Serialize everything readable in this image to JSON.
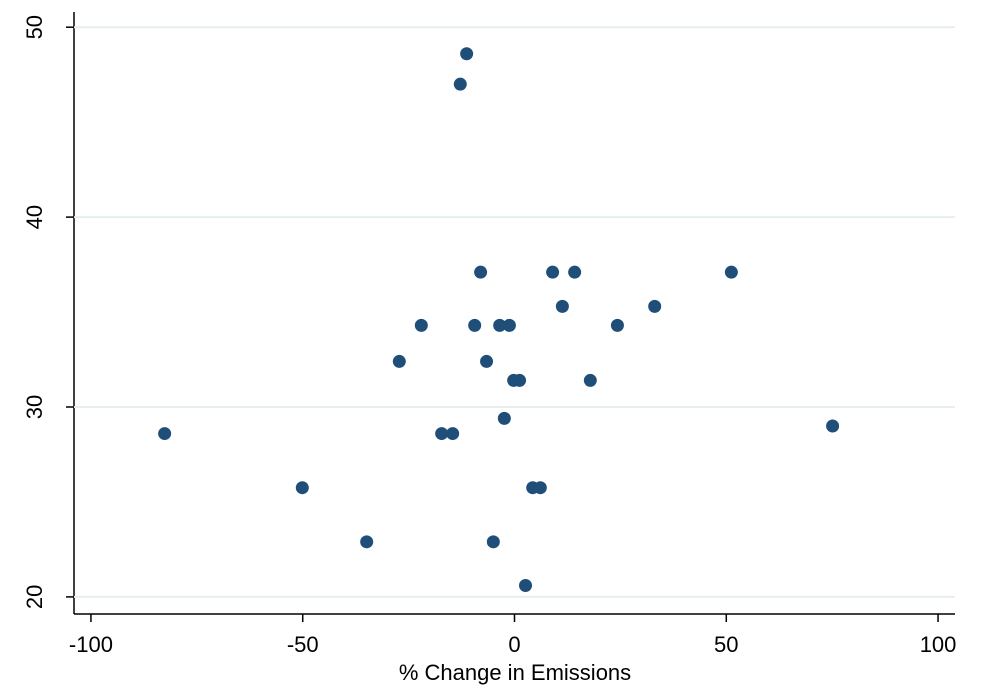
{
  "chart_data": {
    "type": "scatter",
    "x_label": "% Change in Emissions",
    "color": "#1f4e79",
    "grid": true,
    "xlim": [
      -104,
      104
    ],
    "ylim": [
      19.1,
      50.8
    ],
    "xticks": [
      -100,
      -50,
      0,
      50,
      100
    ],
    "yticks": [
      20,
      30,
      40,
      50
    ],
    "x": [
      -82.6,
      -50.1,
      -34.9,
      -27.2,
      -22,
      -17.2,
      -14.6,
      -12.8,
      -11.3,
      -9.4,
      -8,
      -6.6,
      -5,
      -3.5,
      -2.4,
      -1.2,
      -0.2,
      1.2,
      2.6,
      4.3,
      6.1,
      9,
      11.3,
      14.2,
      17.9,
      24.3,
      33.1,
      51.2,
      75.1
    ],
    "values": [
      28.6,
      25.75,
      22.9,
      32.4,
      34.3,
      28.6,
      28.6,
      47.0,
      48.6,
      34.3,
      37.1,
      32.4,
      22.9,
      34.3,
      29.4,
      34.3,
      31.4,
      31.4,
      20.6,
      25.75,
      25.75,
      37.1,
      35.3,
      37.1,
      31.4,
      34.3,
      35.3,
      37.1,
      29.0
    ]
  }
}
